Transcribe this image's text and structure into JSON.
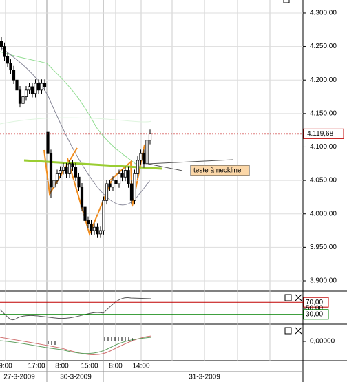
{
  "chart_data": {
    "type": "candlestick",
    "open": [
      4258,
      4250,
      4235,
      4225,
      4215,
      4200,
      4185,
      4165,
      4175,
      4185,
      4190,
      4180,
      4195,
      4185,
      4195,
      4122,
      4090,
      4040,
      4050,
      4060,
      4065,
      4070,
      4060,
      4075,
      4070,
      4055,
      4040,
      4010,
      3990,
      3985,
      3975,
      3980,
      3970,
      3975,
      4020,
      4045,
      4040,
      4050,
      4045,
      4060,
      4055,
      4065,
      4045,
      4020,
      4060,
      4080,
      4090,
      4075,
      4110
    ],
    "high": [
      4264,
      4256,
      4241,
      4231,
      4221,
      4206,
      4191,
      4181,
      4191,
      4196,
      4196,
      4201,
      4201,
      4201,
      4201,
      4128,
      4096,
      4056,
      4066,
      4071,
      4076,
      4076,
      4081,
      4081,
      4076,
      4061,
      4046,
      4016,
      3996,
      3991,
      3986,
      3986,
      3981,
      4026,
      4051,
      4051,
      4056,
      4056,
      4066,
      4066,
      4071,
      4071,
      4051,
      4066,
      4086,
      4096,
      4096,
      4116,
      4126
    ],
    "low": [
      4244,
      4229,
      4219,
      4209,
      4194,
      4179,
      4159,
      4159,
      4169,
      4179,
      4174,
      4174,
      4179,
      4179,
      4184,
      4084,
      4024,
      4034,
      4044,
      4054,
      4059,
      4054,
      4054,
      4064,
      4049,
      4034,
      4004,
      3984,
      3979,
      3969,
      3969,
      3964,
      3964,
      3969,
      4014,
      4034,
      4034,
      4039,
      4039,
      4049,
      4049,
      4039,
      4014,
      4014,
      4054,
      4074,
      4069,
      4069,
      4104
    ],
    "close": [
      4250,
      4235,
      4225,
      4215,
      4200,
      4185,
      4165,
      4175,
      4185,
      4190,
      4180,
      4195,
      4185,
      4195,
      4190,
      4090,
      4040,
      4050,
      4060,
      4065,
      4070,
      4060,
      4075,
      4070,
      4055,
      4040,
      4010,
      3990,
      3985,
      3975,
      3980,
      3970,
      3975,
      4020,
      4045,
      4040,
      4050,
      4045,
      4060,
      4055,
      4065,
      4045,
      4020,
      4060,
      4080,
      4090,
      4075,
      4110,
      4120
    ],
    "ylim": [
      3885.6,
      4319.5
    ],
    "yticks": [
      {
        "value": 4300,
        "label": "4.300,00"
      },
      {
        "value": 4250,
        "label": "4.250,00"
      },
      {
        "value": 4200,
        "label": "4.200,00"
      },
      {
        "value": 4150,
        "label": "4.150,00"
      },
      {
        "value": 4100,
        "label": "4.100,00"
      },
      {
        "value": 4050,
        "label": "4.050,00"
      },
      {
        "value": 4000,
        "label": "4.000,00"
      },
      {
        "value": 3950,
        "label": "3.950,00"
      },
      {
        "value": 3900,
        "label": "3.900,00"
      }
    ],
    "last_price": {
      "value": 4119.68,
      "label": "4.119,68",
      "color": "#c00000"
    },
    "annotation": "teste à neckline",
    "times": [
      "9:00",
      "17:00",
      "8:00",
      "15:00",
      "8:00",
      "14:00"
    ],
    "dates": [
      "27-3-2009",
      "30-3-2009",
      "31-3-2009"
    ],
    "rsi": {
      "ylim": [
        0,
        100
      ],
      "yticks": [
        {
          "value": 70,
          "label": "70,00"
        },
        {
          "value": 50,
          "label": "50,00"
        },
        {
          "value": 30,
          "label": "30,00"
        }
      ]
    },
    "macd": {
      "ylim": [
        -1,
        1
      ],
      "yticks": [
        {
          "value": 0,
          "label": "0,00000"
        }
      ]
    }
  }
}
